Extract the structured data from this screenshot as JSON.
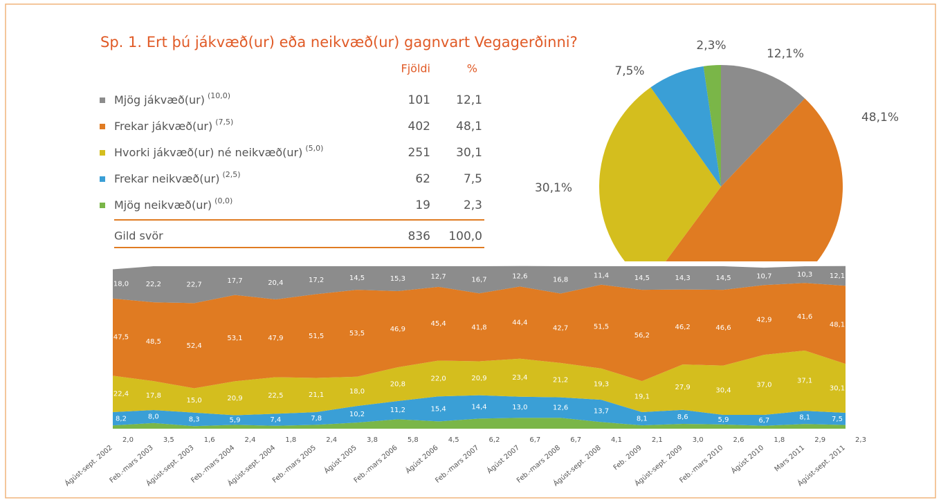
{
  "title": "Sp. 1. Ert þú jákvæð(ur) eða neikvæð(ur) gagnvart Vegagerðinni?",
  "table": {
    "headers": [
      "Fjöldi",
      "%"
    ],
    "rows": [
      {
        "label": "Mjög jákvæð(ur)",
        "note": "(10,0)",
        "count": "101",
        "percent": "12,1"
      },
      {
        "label": "Frekar jákvæð(ur)",
        "note": "(7,5)",
        "count": "402",
        "percent": "48,1"
      },
      {
        "label": "Hvorki jákvæð(ur) né neikvæð(ur)",
        "note": "(5,0)",
        "count": "251",
        "percent": "30,1"
      },
      {
        "label": "Frekar neikvæð(ur)",
        "note": "(2,5)",
        "count": "62",
        "percent": "7,5"
      },
      {
        "label": "Mjög neikvæð(ur)",
        "note": "(0,0)",
        "count": "19",
        "percent": "2,3"
      }
    ],
    "total": {
      "label": "Gild svör",
      "count": "836",
      "percent": "100,0"
    }
  },
  "chart_data": [
    {
      "type": "pie",
      "values": [
        12.1,
        48.1,
        30.1,
        7.5,
        2.3
      ],
      "value_labels": [
        "12,1%",
        "48,1%",
        "30,1%",
        "7,5%",
        "2,3%"
      ],
      "colors": [
        "#8c8c8c",
        "#e07b22",
        "#d4be1e",
        "#3a9fd6",
        "#7ab648"
      ]
    },
    {
      "type": "area",
      "stacked": true,
      "ylim": [
        0,
        100
      ],
      "categories": [
        "Ágúst-sept. 2002",
        "Feb.-mars 2003",
        "Ágúst-sept. 2003",
        "Feb.-mars 2004",
        "Ágúst-sept. 2004",
        "Feb.-mars 2005",
        "Ágúst 2005",
        "Feb.-mars 2006",
        "Ágúst 2006",
        "Feb.-mars 2007",
        "Ágúst 2007",
        "Feb.-mars 2008",
        "Ágúst-sept. 2008",
        "Feb. 2009",
        "Ágúst-sept. 2009",
        "Feb.-mars 2010",
        "Ágúst 2010",
        "Mars 2011",
        "Ágúst-sept. 2011"
      ],
      "series": [
        {
          "color": "#8c8c8c",
          "values": [
            18.0,
            22.2,
            22.7,
            17.7,
            20.4,
            17.2,
            14.5,
            15.3,
            12.7,
            16.7,
            12.6,
            16.8,
            11.4,
            14.5,
            14.3,
            14.5,
            10.7,
            10.3,
            12.1
          ],
          "value_labels": [
            "18,0",
            "22,2",
            "22,7",
            "17,7",
            "20,4",
            "17,2",
            "14,5",
            "15,3",
            "12,7",
            "16,7",
            "12,6",
            "16,8",
            "11,4",
            "14,5",
            "14,3",
            "14,5",
            "10,7",
            "10,3",
            "12,1"
          ]
        },
        {
          "color": "#e07b22",
          "values": [
            47.5,
            48.5,
            52.4,
            53.1,
            47.9,
            51.5,
            53.5,
            46.9,
            45.4,
            41.8,
            44.4,
            42.7,
            51.5,
            56.2,
            46.2,
            46.6,
            42.9,
            41.6,
            48.1
          ],
          "value_labels": [
            "47,5",
            "48,5",
            "52,4",
            "53,1",
            "47,9",
            "51,5",
            "53,5",
            "46,9",
            "45,4",
            "41,8",
            "44,4",
            "42,7",
            "51,5",
            "56,2",
            "46,2",
            "46,6",
            "42,9",
            "41,6",
            "48,1"
          ]
        },
        {
          "color": "#d4be1e",
          "values": [
            22.4,
            17.8,
            15.0,
            20.9,
            22.5,
            21.1,
            18.0,
            20.8,
            22.0,
            20.9,
            23.4,
            21.2,
            19.3,
            19.1,
            27.9,
            30.4,
            37.0,
            37.1,
            30.1
          ],
          "value_labels": [
            "22,4",
            "17,8",
            "15,0",
            "20,9",
            "22,5",
            "21,1",
            "18,0",
            "20,8",
            "22,0",
            "20,9",
            "23,4",
            "21,2",
            "19,3",
            "19,1",
            "27,9",
            "30,4",
            "37,0",
            "37,1",
            "30,1"
          ]
        },
        {
          "color": "#3a9fd6",
          "values": [
            8.2,
            8.0,
            8.3,
            5.9,
            7.4,
            7.8,
            10.2,
            11.2,
            15.4,
            14.4,
            13.0,
            12.6,
            13.7,
            8.1,
            8.6,
            5.9,
            6.7,
            8.1,
            7.5
          ],
          "value_labels": [
            "8,2",
            "8,0",
            "8,3",
            "5,9",
            "7,4",
            "7,8",
            "10,2",
            "11,2",
            "15,4",
            "14,4",
            "13,0",
            "12,6",
            "13,7",
            "8,1",
            "8,6",
            "5,9",
            "6,7",
            "8,1",
            "7,5"
          ]
        },
        {
          "color": "#7ab648",
          "values": [
            2.0,
            3.5,
            1.6,
            2.4,
            1.8,
            2.4,
            3.8,
            5.8,
            4.5,
            6.2,
            6.7,
            6.7,
            4.1,
            2.1,
            3.0,
            2.6,
            1.8,
            2.9,
            2.3
          ],
          "value_labels": [
            "2,0",
            "3,5",
            "1,6",
            "2,4",
            "1,8",
            "2,4",
            "3,8",
            "5,8",
            "4,5",
            "6,2",
            "6,7",
            "6,7",
            "4,1",
            "2,1",
            "3,0",
            "2,6",
            "1,8",
            "2,9",
            "2,3"
          ]
        }
      ]
    }
  ]
}
